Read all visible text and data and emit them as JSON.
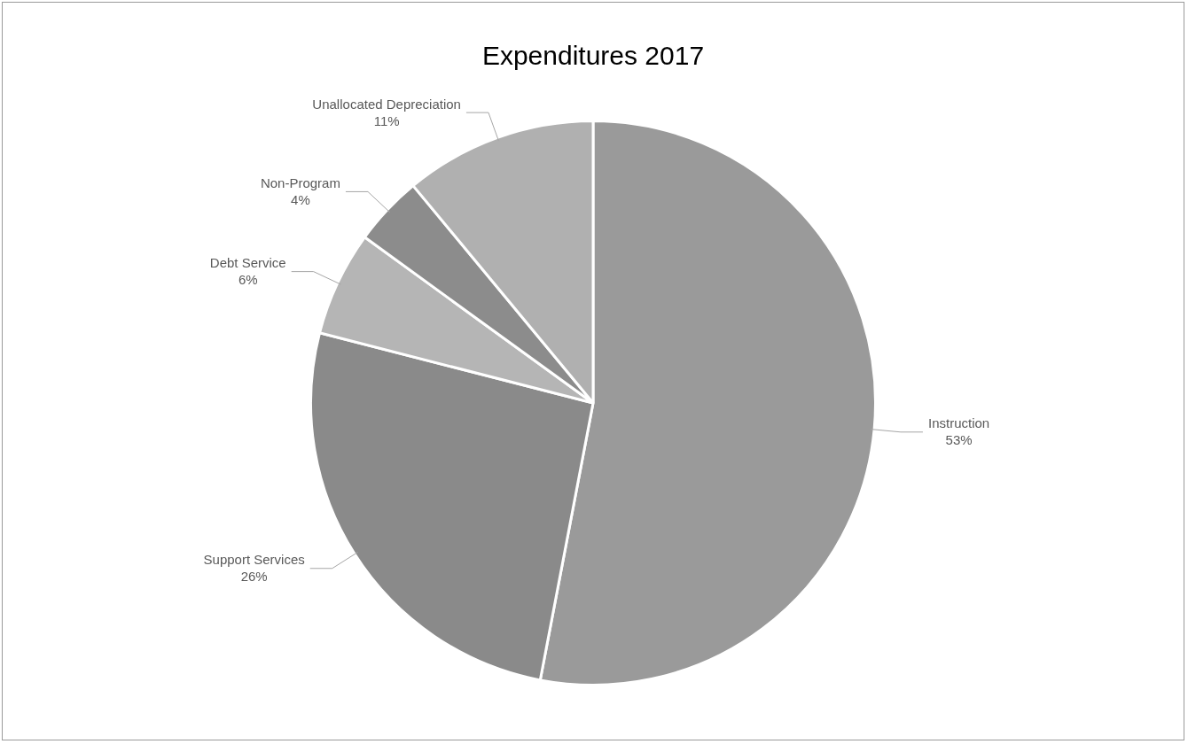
{
  "chart_data": {
    "type": "pie",
    "title": "Expenditures 2017",
    "categories": [
      "Instruction",
      "Support Services",
      "Debt Service",
      "Non-Program",
      "Unallocated Depreciation"
    ],
    "values": [
      53,
      26,
      6,
      4,
      11
    ],
    "colors": [
      "#9a9a9a",
      "#8a8a8a",
      "#b5b5b5",
      "#8c8c8c",
      "#b0b0b0"
    ],
    "value_labels": [
      "53%",
      "26%",
      "6%",
      "4%",
      "11%"
    ],
    "legend": false
  }
}
